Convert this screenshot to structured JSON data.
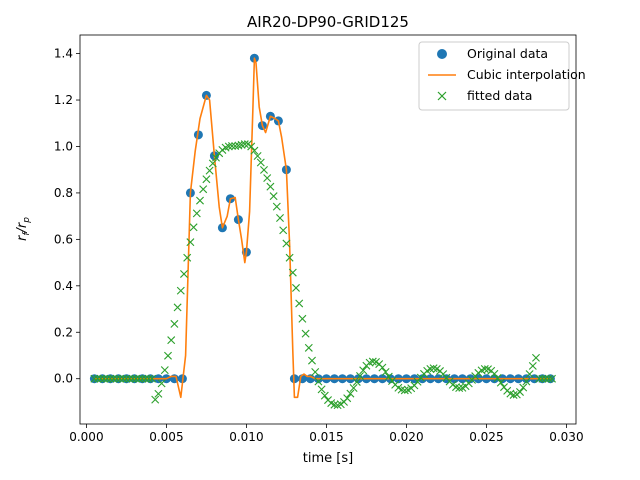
{
  "chart_data": {
    "type": "line",
    "title": "AIR20-DP90-GRID125",
    "xlabel": "time [s]",
    "ylabel_main": "r",
    "ylabel_sub1": "f",
    "ylabel_sep": "/r",
    "ylabel_sub2": "p",
    "xlim": [
      -0.0004,
      0.0306
    ],
    "ylim": [
      -0.195,
      1.48
    ],
    "xticks": [
      0.0,
      0.005,
      0.01,
      0.015,
      0.02,
      0.025,
      0.03
    ],
    "xtick_labels": [
      "0.000",
      "0.005",
      "0.010",
      "0.015",
      "0.020",
      "0.025",
      "0.030"
    ],
    "yticks": [
      0.0,
      0.2,
      0.4,
      0.6,
      0.8,
      1.0,
      1.2,
      1.4
    ],
    "ytick_labels": [
      "0.0",
      "0.2",
      "0.4",
      "0.6",
      "0.8",
      "1.0",
      "1.2",
      "1.4"
    ],
    "grid": false,
    "legend_position": "top-right",
    "colors": {
      "original": "#1f77b4",
      "cubic": "#ff7f0e",
      "fitted": "#2ca02c"
    },
    "series": [
      {
        "name": "Original data",
        "marker": "circle",
        "x": [
          0.0005,
          0.001,
          0.0015,
          0.002,
          0.0025,
          0.003,
          0.0035,
          0.004,
          0.0045,
          0.005,
          0.0055,
          0.006,
          0.0065,
          0.007,
          0.0075,
          0.008,
          0.0085,
          0.009,
          0.0095,
          0.01,
          0.0105,
          0.011,
          0.0115,
          0.012,
          0.0125,
          0.013,
          0.0135,
          0.014,
          0.0145,
          0.015,
          0.0155,
          0.016,
          0.0165,
          0.017,
          0.0175,
          0.018,
          0.0185,
          0.019,
          0.0195,
          0.02,
          0.0205,
          0.021,
          0.0215,
          0.022,
          0.0225,
          0.023,
          0.0235,
          0.024,
          0.0245,
          0.025,
          0.0255,
          0.026,
          0.0265,
          0.027,
          0.0275,
          0.028,
          0.0285,
          0.029
        ],
        "y": [
          0,
          0,
          0,
          0,
          0,
          0,
          0,
          0,
          0,
          0,
          0,
          0,
          0.8,
          1.05,
          1.22,
          0.96,
          0.65,
          0.775,
          0.685,
          0.545,
          1.38,
          1.09,
          1.13,
          1.11,
          0.9,
          0,
          0,
          0,
          0,
          0,
          0,
          0,
          0,
          0,
          0,
          0,
          0,
          0,
          0,
          0,
          0,
          0,
          0,
          0,
          0,
          0,
          0,
          0,
          0,
          0,
          0,
          0,
          0,
          0,
          0,
          0,
          0,
          0
        ]
      },
      {
        "name": "Cubic interpolation",
        "marker": "line",
        "x": [
          0.0005,
          0.005,
          0.0053,
          0.0056,
          0.0059,
          0.0062,
          0.0065,
          0.0068,
          0.0071,
          0.0075,
          0.0077,
          0.008,
          0.0083,
          0.0085,
          0.0088,
          0.009,
          0.0093,
          0.0095,
          0.0097,
          0.0099,
          0.01,
          0.0102,
          0.0104,
          0.0105,
          0.0106,
          0.0108,
          0.011,
          0.0112,
          0.0115,
          0.0118,
          0.012,
          0.0122,
          0.0125,
          0.0127,
          0.0129,
          0.013,
          0.0132,
          0.0134,
          0.0136,
          0.0138,
          0.014,
          0.0143,
          0.015,
          0.029
        ],
        "y": [
          0,
          0,
          0.01,
          0.01,
          -0.08,
          0.1,
          0.8,
          0.98,
          1.12,
          1.22,
          1.2,
          0.96,
          0.74,
          0.65,
          0.7,
          0.775,
          0.78,
          0.685,
          0.6,
          0.5,
          0.545,
          0.72,
          1.15,
          1.38,
          1.36,
          1.17,
          1.09,
          1.06,
          1.13,
          1.12,
          1.11,
          1.04,
          0.9,
          0.58,
          0.12,
          -0.08,
          -0.08,
          0.01,
          0.02,
          0.01,
          0.01,
          0,
          0,
          0
        ]
      },
      {
        "name": "fitted data",
        "marker": "x",
        "x": [
          0.0005,
          0.0007,
          0.0009,
          0.0011,
          0.0013,
          0.0015,
          0.0017,
          0.0019,
          0.0021,
          0.0023,
          0.0025,
          0.0027,
          0.0029,
          0.0031,
          0.0033,
          0.0035,
          0.0037,
          0.0039,
          0.0041,
          0.0043,
          0.0045,
          0.0047,
          0.0049,
          0.0051,
          0.0053,
          0.0055,
          0.0057,
          0.0059,
          0.0061,
          0.0063,
          0.0065,
          0.0067,
          0.0069,
          0.0071,
          0.0073,
          0.0075,
          0.0077,
          0.0079,
          0.0081,
          0.0083,
          0.0085,
          0.0087,
          0.0089,
          0.0091,
          0.0093,
          0.0095,
          0.0097,
          0.0099,
          0.0101,
          0.0103,
          0.0105,
          0.0107,
          0.0109,
          0.0111,
          0.0113,
          0.0115,
          0.0117,
          0.0119,
          0.0121,
          0.0123,
          0.0125,
          0.0127,
          0.0129,
          0.0131,
          0.0133,
          0.0135,
          0.0137,
          0.0139,
          0.0141,
          0.0143,
          0.0145,
          0.0147,
          0.0149,
          0.0151,
          0.0153,
          0.0155,
          0.0157,
          0.0159,
          0.0161,
          0.0163,
          0.0165,
          0.0167,
          0.0169,
          0.0171,
          0.0173,
          0.0175,
          0.0177,
          0.0179,
          0.0181,
          0.0183,
          0.0185,
          0.0187,
          0.0189,
          0.0191,
          0.0193,
          0.0195,
          0.0197,
          0.0199,
          0.0201,
          0.0203,
          0.0205,
          0.0207,
          0.0209,
          0.0211,
          0.0213,
          0.0215,
          0.0217,
          0.0219,
          0.0221,
          0.0223,
          0.0225,
          0.0227,
          0.0229,
          0.0231,
          0.0233,
          0.0235,
          0.0237,
          0.0239,
          0.0241,
          0.0243,
          0.0245,
          0.0247,
          0.0249,
          0.0251,
          0.0253,
          0.0255,
          0.0257,
          0.0259,
          0.0261,
          0.0263,
          0.0265,
          0.0267,
          0.0269,
          0.0271,
          0.0273,
          0.0275,
          0.0277,
          0.0279,
          0.0281,
          0.0283,
          0.0285,
          0.0287,
          0.0289,
          0.0291
        ],
        "y": [
          0.0,
          0.0,
          0.0,
          0.0,
          0.0,
          0.0,
          0.0,
          0.0,
          0.0,
          0.0,
          0.0,
          0.0,
          0.0,
          0.0,
          0.0,
          0.0,
          0.0,
          0.0,
          0.0,
          -0.09,
          -0.065,
          -0.02,
          0.037,
          0.099,
          0.166,
          0.236,
          0.307,
          0.379,
          0.451,
          0.521,
          0.588,
          0.652,
          0.712,
          0.767,
          0.816,
          0.859,
          0.896,
          0.927,
          0.952,
          0.971,
          0.985,
          0.995,
          1.0,
          1.002,
          1.002,
          1.004,
          1.007,
          1.01,
          1.01,
          1.0,
          0.982,
          0.959,
          0.931,
          0.899,
          0.864,
          0.827,
          0.786,
          0.741,
          0.692,
          0.639,
          0.582,
          0.521,
          0.457,
          0.391,
          0.324,
          0.258,
          0.194,
          0.133,
          0.078,
          0.029,
          -0.012,
          -0.046,
          -0.073,
          -0.092,
          -0.105,
          -0.112,
          -0.114,
          -0.11,
          -0.1,
          -0.084,
          -0.064,
          -0.04,
          -0.014,
          0.012,
          0.036,
          0.056,
          0.069,
          0.074,
          0.072,
          0.063,
          0.048,
          0.029,
          0.009,
          -0.01,
          -0.026,
          -0.039,
          -0.047,
          -0.05,
          -0.048,
          -0.041,
          -0.029,
          -0.013,
          0.005,
          0.021,
          0.034,
          0.042,
          0.045,
          0.042,
          0.033,
          0.02,
          0.004,
          -0.012,
          -0.026,
          -0.036,
          -0.04,
          -0.039,
          -0.032,
          -0.02,
          -0.005,
          0.011,
          0.025,
          0.036,
          0.042,
          0.041,
          0.034,
          0.021,
          0.003,
          -0.017,
          -0.036,
          -0.052,
          -0.064,
          -0.07,
          -0.068,
          -0.057,
          -0.038,
          -0.012,
          0.02,
          0.055,
          0.09,
          0.0,
          0.0,
          0.0,
          0.0,
          0.0
        ]
      }
    ]
  }
}
